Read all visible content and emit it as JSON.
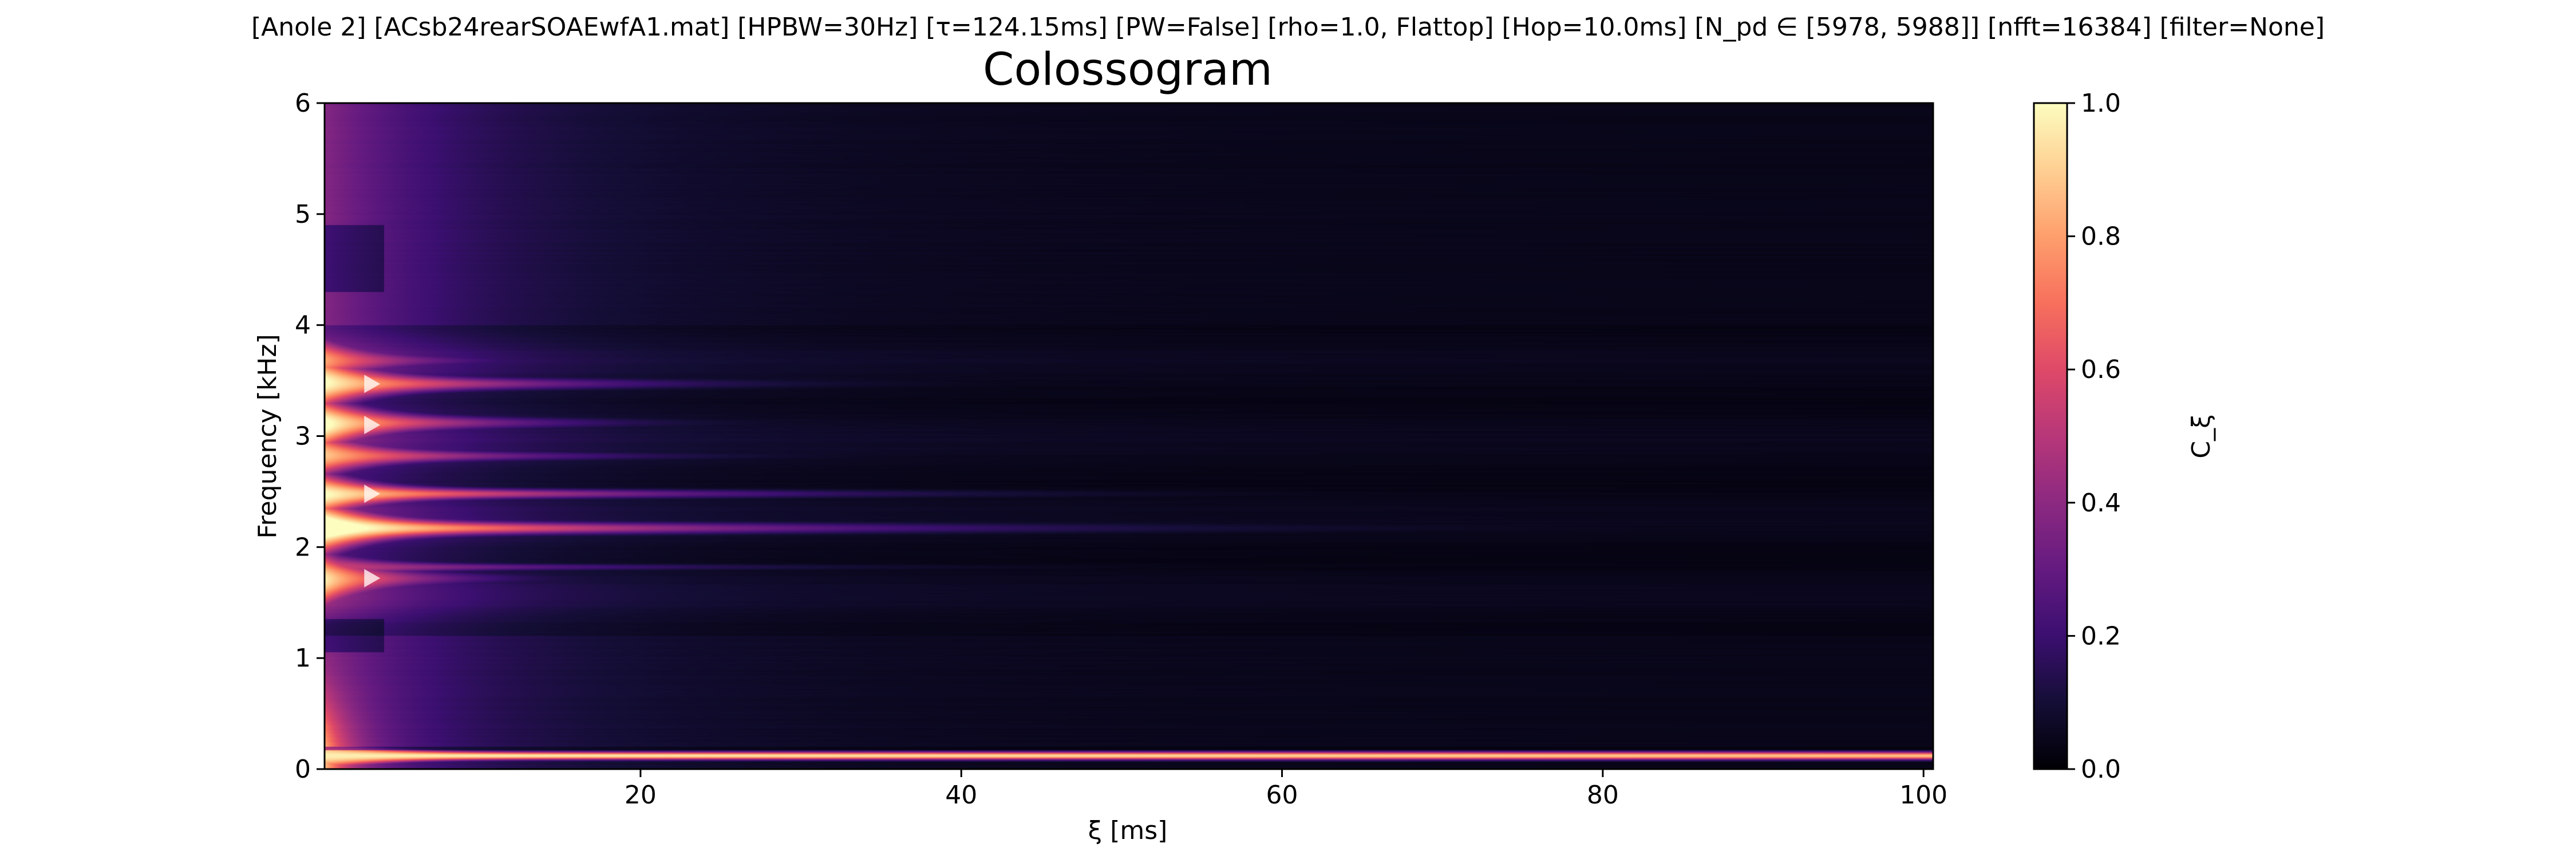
{
  "chart_data": {
    "type": "heatmap",
    "suptitle": "[Anole 2]   [ACsb24rearSOAEwfA1.mat]   [HPBW=30Hz]   [τ=124.15ms]   [PW=False]   [rho=1.0, Flattop]   [Hop=10.0ms]   [N_pd ∈ [5978, 5988]]   [nfft=16384]   [filter=None]",
    "title": "Colossogram",
    "xlabel": "ξ [ms]",
    "ylabel": "Frequency [kHz]",
    "colorbar_label": "C_ξ",
    "xlim": [
      0.3,
      100.6
    ],
    "ylim": [
      0,
      6
    ],
    "clim": [
      0,
      1
    ],
    "x_ticks": [
      20,
      40,
      60,
      80,
      100
    ],
    "y_ticks": [
      0,
      1,
      2,
      3,
      4,
      5,
      6
    ],
    "colorbar_ticks": [
      0.0,
      0.2,
      0.4,
      0.6,
      0.8,
      1.0
    ],
    "x_tick_labels": [
      "20",
      "40",
      "60",
      "80",
      "100"
    ],
    "y_tick_labels": [
      "0",
      "1",
      "2",
      "3",
      "4",
      "5",
      "6"
    ],
    "colorbar_tick_labels": [
      "0.0",
      "0.2",
      "0.4",
      "0.6",
      "0.8",
      "1.0"
    ],
    "colormap": "magma",
    "bands_khz": [
      {
        "f": 0.12,
        "peak": 0.97,
        "decay_ms": 900,
        "width_khz": 0.035
      },
      {
        "f": 1.72,
        "peak": 0.78,
        "decay_ms": 6,
        "width_khz": 0.05
      },
      {
        "f": 1.82,
        "peak": 0.45,
        "decay_ms": 18,
        "width_khz": 0.03
      },
      {
        "f": 2.17,
        "peak": 0.95,
        "decay_ms": 22,
        "width_khz": 0.05
      },
      {
        "f": 2.48,
        "peak": 0.85,
        "decay_ms": 18,
        "width_khz": 0.04
      },
      {
        "f": 2.82,
        "peak": 0.7,
        "decay_ms": 11,
        "width_khz": 0.04
      },
      {
        "f": 3.12,
        "peak": 0.86,
        "decay_ms": 9,
        "width_khz": 0.05
      },
      {
        "f": 3.47,
        "peak": 0.85,
        "decay_ms": 12,
        "width_khz": 0.05
      },
      {
        "f": 3.68,
        "peak": 0.6,
        "decay_ms": 6,
        "width_khz": 0.04
      }
    ],
    "markers_khz": [
      1.72,
      2.48,
      3.1,
      3.47
    ],
    "marker_x_ms": 3.2
  }
}
